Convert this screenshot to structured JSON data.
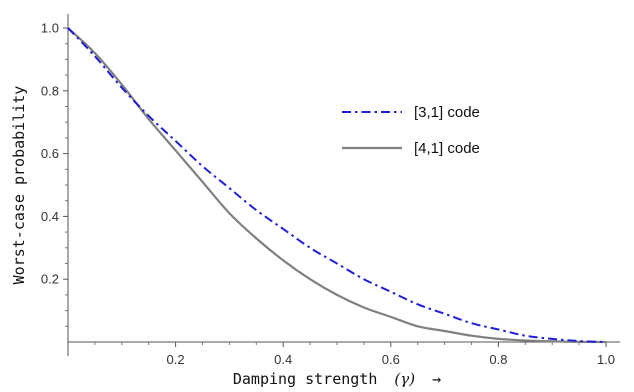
{
  "chart_data": {
    "type": "line",
    "xlabel": "Damping strength",
    "xlabel_symbol": "(γ)",
    "xlabel_arrow": "→",
    "ylabel": "Worst-case probability",
    "xlim": [
      0,
      1
    ],
    "ylim": [
      0,
      1.0
    ],
    "x_ticks": [
      0.2,
      0.4,
      0.6,
      0.8,
      1.0
    ],
    "x_tick_labels": [
      "0.2",
      "0.4",
      "0.6",
      "0.8",
      "1.0"
    ],
    "y_ticks": [
      0.2,
      0.4,
      0.6,
      0.8,
      1.0
    ],
    "y_tick_labels": [
      "0.2",
      "0.4",
      "0.6",
      "0.8",
      "1.0"
    ],
    "grid": false,
    "legend_position": "right-center",
    "x": [
      0,
      0.05,
      0.1,
      0.15,
      0.2,
      0.25,
      0.3,
      0.35,
      0.4,
      0.45,
      0.5,
      0.55,
      0.6,
      0.65,
      0.7,
      0.75,
      0.8,
      0.85,
      0.9,
      0.95,
      1.0
    ],
    "series": [
      {
        "name": "[3,1] code",
        "color": "#1f1fd6",
        "dash": "dashdot",
        "values": [
          1.0,
          0.91,
          0.81,
          0.72,
          0.64,
          0.56,
          0.49,
          0.42,
          0.36,
          0.3,
          0.25,
          0.2,
          0.16,
          0.12,
          0.09,
          0.06,
          0.04,
          0.02,
          0.01,
          0.003,
          0.0
        ]
      },
      {
        "name": "[4,1] code",
        "color": "#808080",
        "dash": "solid",
        "values": [
          1.0,
          0.92,
          0.82,
          0.71,
          0.61,
          0.51,
          0.41,
          0.33,
          0.26,
          0.2,
          0.15,
          0.11,
          0.08,
          0.05,
          0.035,
          0.02,
          0.01,
          0.005,
          0.002,
          0.0004,
          0.0
        ]
      }
    ]
  }
}
